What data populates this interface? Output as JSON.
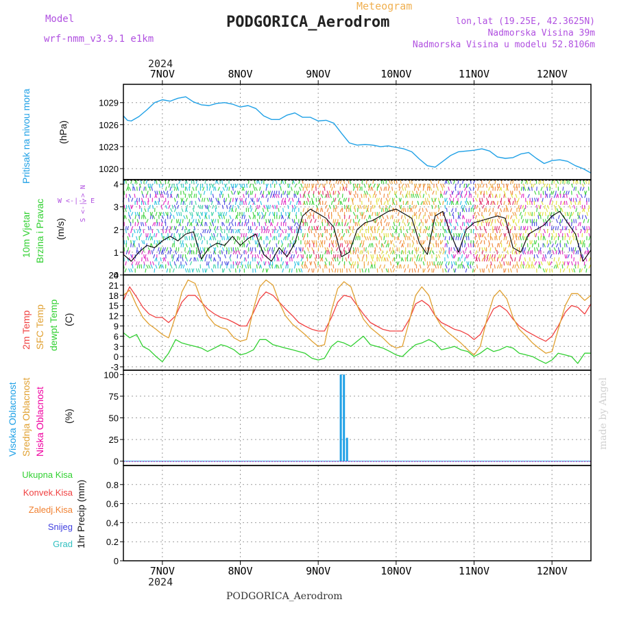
{
  "header": {
    "title": "PODGORICA_Aerodrom",
    "product": "Meteogram",
    "model_label": "Model",
    "model_name": "wrf-nmm_v3.9.1 e1km",
    "lonlat": "lon,lat (19.25E, 42.3625N)",
    "altitude": "Nadmorska Visina 39m",
    "model_altitude": "Nadmorska Visina u modelu 52.8106m",
    "footer_title": "PODGORICA_Aerodrom",
    "credit": "made by Angel"
  },
  "x_axis": {
    "year": "2024",
    "ticks": [
      "7NOV",
      "8NOV",
      "9NOV",
      "10NOV",
      "11NOV",
      "12NOV"
    ]
  },
  "panel_labels": {
    "pressure": {
      "name": "Pritisak na nivou mora",
      "unit": "(hPa)"
    },
    "wind": {
      "name_line1": "10m Vjetar",
      "name_line2": "Brzina i Pravac",
      "unit": "(m/s)",
      "compass": "W <-|-> E",
      "compass_v": "S <-|-> N"
    },
    "temp": {
      "t2m": "2m Temp",
      "sfc": "SFC Temp",
      "dew": "dewpt Temp",
      "unit": "(C)"
    },
    "cloud": {
      "high": "Visoka Oblacnost",
      "mid": "Srednja Oblacnost",
      "low": "Niska Oblacnost",
      "unit": "(%)"
    },
    "precip": {
      "total": "Ukupna Kisa",
      "conv": "Konvek.Kisa",
      "frz": "Zaledj.Kisa",
      "snow": "Snijeg",
      "hail": "Grad",
      "unit": "1hr Precip (mm)"
    }
  },
  "colors": {
    "pressure": "#1ea0e6",
    "t2m": "#f04040",
    "sfc": "#e0a030",
    "dew": "#30d030",
    "wind_mean": "#000000",
    "wind_gust": "#f04040",
    "cloud_high": "#1ea0e6",
    "cloud_mid": "#e0a030",
    "cloud_low": "#f000a0",
    "label_pressure": "#1ea0e6",
    "label_wind": "#30d030",
    "label_model": "#b050e0",
    "label_product": "#f0b050"
  },
  "chart_data": [
    {
      "type": "line",
      "panel": "pressure",
      "x_unit": "days since 7NOV 00Z",
      "ylabel": "(hPa)",
      "ylim": [
        1018.5,
        1031.5
      ],
      "yticks": [
        1020,
        1023,
        1026,
        1029
      ],
      "series": [
        {
          "name": "Pritisak na nivou mora",
          "x": [
            -0.5,
            -0.45,
            -0.4,
            -0.3,
            -0.2,
            -0.1,
            0.0,
            0.1,
            0.2,
            0.3,
            0.4,
            0.5,
            0.6,
            0.7,
            0.8,
            0.9,
            1.0,
            1.1,
            1.2,
            1.3,
            1.4,
            1.5,
            1.6,
            1.7,
            1.8,
            1.9,
            2.0,
            2.1,
            2.2,
            2.3,
            2.4,
            2.5,
            2.6,
            2.7,
            2.8,
            2.9,
            3.0,
            3.1,
            3.2,
            3.3,
            3.4,
            3.5,
            3.6,
            3.7,
            3.8,
            3.9,
            4.0,
            4.1,
            4.2,
            4.3,
            4.4,
            4.5,
            4.6,
            4.7,
            4.8,
            4.9,
            5.0,
            5.1,
            5.2,
            5.3,
            5.4,
            5.5
          ],
          "y": [
            1027.2,
            1026.6,
            1026.5,
            1027.1,
            1028.0,
            1029.0,
            1029.4,
            1029.2,
            1029.6,
            1029.8,
            1029.1,
            1028.7,
            1028.6,
            1028.9,
            1029.0,
            1028.8,
            1028.4,
            1028.6,
            1028.2,
            1027.2,
            1026.7,
            1026.7,
            1027.3,
            1027.6,
            1027.0,
            1027.0,
            1026.5,
            1026.6,
            1026.2,
            1024.8,
            1023.5,
            1023.2,
            1023.3,
            1023.2,
            1023.0,
            1023.1,
            1022.9,
            1022.7,
            1022.3,
            1021.3,
            1020.4,
            1020.2,
            1021.0,
            1021.8,
            1022.3,
            1022.4,
            1022.5,
            1022.7,
            1022.4,
            1021.6,
            1021.4,
            1021.5,
            1022.0,
            1022.2,
            1021.4,
            1020.7,
            1021.1,
            1021.2,
            1021.0,
            1020.4,
            1020.0,
            1019.4
          ]
        }
      ]
    },
    {
      "type": "line",
      "panel": "wind",
      "x_unit": "days since 7NOV 00Z",
      "ylabel": "(m/s)",
      "ylim": [
        0,
        4.2
      ],
      "yticks": [
        0,
        1,
        2,
        3,
        4
      ],
      "series": [
        {
          "name": "wind_speed",
          "x": [
            -0.5,
            -0.4,
            -0.3,
            -0.2,
            -0.1,
            0.0,
            0.1,
            0.2,
            0.3,
            0.4,
            0.5,
            0.6,
            0.7,
            0.8,
            0.9,
            1.0,
            1.1,
            1.2,
            1.3,
            1.4,
            1.5,
            1.6,
            1.7,
            1.8,
            1.9,
            2.0,
            2.1,
            2.2,
            2.3,
            2.4,
            2.5,
            2.6,
            2.7,
            2.8,
            2.9,
            3.0,
            3.1,
            3.2,
            3.3,
            3.4,
            3.5,
            3.6,
            3.7,
            3.8,
            3.9,
            4.0,
            4.1,
            4.2,
            4.3,
            4.4,
            4.5,
            4.6,
            4.7,
            4.8,
            4.9,
            5.0,
            5.1,
            5.2,
            5.3,
            5.4,
            5.5
          ],
          "y": [
            0.9,
            0.6,
            1.0,
            1.3,
            1.2,
            1.5,
            1.7,
            1.5,
            1.8,
            1.9,
            0.7,
            1.2,
            1.4,
            1.3,
            1.7,
            1.3,
            1.6,
            1.8,
            0.9,
            0.6,
            1.2,
            0.8,
            1.4,
            2.6,
            2.9,
            2.7,
            2.5,
            2.1,
            0.8,
            1.0,
            2.0,
            2.3,
            2.4,
            2.6,
            2.8,
            2.9,
            2.7,
            2.5,
            1.4,
            0.9,
            2.6,
            2.8,
            1.8,
            1.0,
            2.0,
            2.3,
            2.4,
            2.5,
            2.6,
            2.5,
            1.2,
            1.0,
            1.8,
            2.0,
            2.2,
            2.6,
            2.8,
            2.3,
            1.8,
            0.6,
            1.1
          ]
        }
      ]
    },
    {
      "type": "line",
      "panel": "temperature",
      "x_unit": "days since 7NOV 00Z",
      "ylabel": "(C)",
      "ylim": [
        -4,
        24
      ],
      "yticks": [
        -3,
        0,
        3,
        6,
        9,
        12,
        15,
        18,
        21,
        24
      ],
      "series": [
        {
          "name": "2m Temp",
          "x": [
            -0.5,
            -0.42,
            -0.33,
            -0.25,
            -0.17,
            -0.08,
            0.0,
            0.08,
            0.17,
            0.25,
            0.33,
            0.42,
            0.5,
            0.58,
            0.67,
            0.75,
            0.83,
            0.92,
            1.0,
            1.08,
            1.17,
            1.25,
            1.33,
            1.42,
            1.5,
            1.58,
            1.67,
            1.75,
            1.83,
            1.92,
            2.0,
            2.08,
            2.17,
            2.25,
            2.33,
            2.42,
            2.5,
            2.58,
            2.67,
            2.75,
            2.83,
            2.92,
            3.0,
            3.08,
            3.17,
            3.25,
            3.33,
            3.42,
            3.5,
            3.58,
            3.67,
            3.75,
            3.83,
            3.92,
            4.0,
            4.08,
            4.17,
            4.25,
            4.33,
            4.42,
            4.5,
            4.58,
            4.67,
            4.75,
            4.83,
            4.92,
            5.0,
            5.08,
            5.17,
            5.25,
            5.33,
            5.42,
            5.5
          ],
          "y": [
            16.5,
            20.5,
            17.5,
            14.5,
            12.5,
            11.5,
            11.5,
            10.0,
            12.0,
            16.0,
            18.0,
            18.0,
            16.0,
            14.0,
            12.5,
            11.5,
            11.0,
            10.0,
            9.0,
            9.0,
            13.0,
            17.0,
            19.0,
            18.0,
            16.0,
            14.0,
            12.0,
            10.0,
            9.0,
            8.0,
            7.5,
            7.5,
            11.5,
            16.0,
            18.0,
            17.5,
            15.0,
            12.5,
            10.0,
            9.0,
            8.0,
            7.5,
            7.5,
            7.5,
            11.0,
            15.5,
            16.5,
            15.0,
            12.0,
            10.0,
            9.0,
            8.0,
            7.5,
            6.5,
            5.0,
            6.5,
            10.5,
            14.0,
            15.0,
            13.5,
            11.0,
            9.0,
            7.5,
            6.5,
            5.5,
            4.5,
            6.0,
            9.0,
            13.0,
            15.0,
            14.5,
            12.5,
            15.5
          ]
        },
        {
          "name": "SFC Temp",
          "x": [
            -0.5,
            -0.42,
            -0.33,
            -0.25,
            -0.17,
            -0.08,
            0.0,
            0.08,
            0.17,
            0.25,
            0.33,
            0.42,
            0.5,
            0.58,
            0.67,
            0.75,
            0.83,
            0.92,
            1.0,
            1.08,
            1.17,
            1.25,
            1.33,
            1.42,
            1.5,
            1.58,
            1.67,
            1.75,
            1.83,
            1.92,
            2.0,
            2.08,
            2.17,
            2.25,
            2.33,
            2.42,
            2.5,
            2.58,
            2.67,
            2.75,
            2.83,
            2.92,
            3.0,
            3.08,
            3.17,
            3.25,
            3.33,
            3.42,
            3.5,
            3.58,
            3.67,
            3.75,
            3.83,
            3.92,
            4.0,
            4.08,
            4.17,
            4.25,
            4.33,
            4.42,
            4.5,
            4.58,
            4.67,
            4.75,
            4.83,
            4.92,
            5.0,
            5.08,
            5.17,
            5.25,
            5.33,
            5.42,
            5.5
          ],
          "y": [
            18.0,
            19.5,
            15.0,
            11.5,
            9.5,
            8.0,
            6.5,
            5.5,
            12.0,
            19.0,
            22.5,
            21.5,
            16.5,
            12.0,
            9.5,
            8.5,
            8.0,
            5.5,
            4.5,
            5.0,
            14.0,
            20.5,
            22.5,
            21.0,
            16.0,
            12.0,
            9.5,
            8.0,
            6.5,
            4.5,
            3.0,
            3.5,
            13.5,
            20.0,
            22.0,
            20.5,
            15.0,
            11.0,
            8.5,
            7.0,
            5.5,
            3.5,
            2.5,
            3.0,
            10.5,
            18.0,
            20.5,
            18.0,
            12.0,
            9.0,
            7.0,
            5.5,
            4.0,
            2.0,
            0.5,
            3.0,
            11.5,
            17.5,
            19.5,
            17.0,
            11.5,
            8.0,
            6.0,
            4.0,
            2.5,
            1.0,
            1.5,
            8.0,
            15.0,
            18.5,
            18.5,
            16.5,
            18.0
          ]
        },
        {
          "name": "dewpt Temp",
          "x": [
            -0.5,
            -0.42,
            -0.33,
            -0.25,
            -0.17,
            -0.08,
            0.0,
            0.08,
            0.17,
            0.25,
            0.33,
            0.42,
            0.5,
            0.58,
            0.67,
            0.75,
            0.83,
            0.92,
            1.0,
            1.08,
            1.17,
            1.25,
            1.33,
            1.42,
            1.5,
            1.58,
            1.67,
            1.75,
            1.83,
            1.92,
            2.0,
            2.08,
            2.17,
            2.25,
            2.33,
            2.42,
            2.5,
            2.58,
            2.67,
            2.75,
            2.83,
            2.92,
            3.0,
            3.08,
            3.17,
            3.25,
            3.33,
            3.42,
            3.5,
            3.58,
            3.67,
            3.75,
            3.83,
            3.92,
            4.0,
            4.08,
            4.17,
            4.25,
            4.33,
            4.42,
            4.5,
            4.58,
            4.67,
            4.75,
            4.83,
            4.92,
            5.0,
            5.08,
            5.17,
            5.25,
            5.33,
            5.42,
            5.5
          ],
          "y": [
            7.0,
            5.5,
            6.5,
            3.0,
            2.0,
            0.0,
            -1.5,
            1.0,
            5.0,
            4.0,
            3.5,
            3.0,
            2.5,
            1.5,
            2.5,
            3.5,
            3.0,
            2.0,
            0.5,
            1.0,
            2.0,
            5.0,
            5.0,
            3.5,
            3.0,
            2.5,
            2.0,
            1.5,
            1.0,
            -0.5,
            -1.0,
            -0.5,
            3.0,
            4.5,
            4.0,
            3.0,
            4.5,
            6.0,
            3.5,
            3.0,
            2.5,
            1.5,
            0.5,
            0.0,
            2.0,
            3.5,
            4.0,
            5.0,
            4.0,
            2.0,
            2.5,
            3.0,
            2.0,
            1.5,
            0.0,
            1.0,
            2.5,
            1.5,
            2.0,
            3.0,
            2.5,
            1.0,
            0.5,
            0.0,
            -1.0,
            -2.0,
            -1.0,
            1.0,
            0.5,
            0.0,
            -2.0,
            1.0,
            1.0
          ]
        }
      ]
    },
    {
      "type": "bar",
      "panel": "cloud",
      "x_unit": "days since 7NOV 00Z",
      "ylabel": "(%)",
      "ylim": [
        -5,
        105
      ],
      "yticks": [
        0,
        25,
        50,
        75,
        100
      ],
      "series": [
        {
          "name": "Visoka Oblacnost",
          "x": [
            2.29,
            2.33,
            2.37
          ],
          "values": [
            100,
            100,
            27
          ]
        },
        {
          "name": "Srednja Oblacnost",
          "x": [],
          "values": []
        },
        {
          "name": "Niska Oblacnost",
          "x": [],
          "values": []
        }
      ]
    },
    {
      "type": "bar",
      "panel": "precip",
      "x_unit": "days since 7NOV 00Z",
      "ylabel": "1hr Precip (mm)",
      "ylim": [
        0,
        1.0
      ],
      "yticks": [
        0,
        0.2,
        0.4,
        0.6,
        0.8
      ],
      "series": [
        {
          "name": "Ukupna Kisa",
          "x": [],
          "values": []
        }
      ]
    }
  ]
}
